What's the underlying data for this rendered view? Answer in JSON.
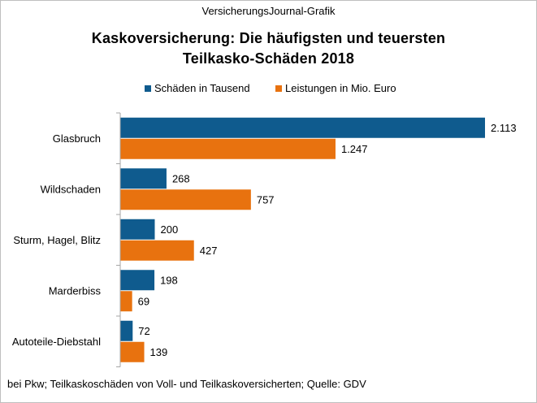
{
  "source_label": "VersicherungsJournal-Grafik",
  "title_line1": "Kaskoversicherung:  Die häufigsten  und  teuersten",
  "title_line2": "Teilkasko-Schäden  2018",
  "footnote": "bei Pkw; Teilkaskoschäden  von  Voll- und Teilkaskoversicherten;   Quelle: GDV",
  "colors": {
    "series1": "#0f5b8e",
    "series2": "#e8720f",
    "axis": "#a6a6a6",
    "border": "#bfbfbf"
  },
  "chart_data": {
    "type": "bar",
    "orientation": "horizontal",
    "title": "Kaskoversicherung:  Die häufigsten  und  teuersten Teilkasko-Schäden  2018",
    "categories": [
      "Glasbruch",
      "Wildschaden",
      "Sturm, Hagel, Blitz",
      "Marderbiss",
      "Autoteile-Diebstahl"
    ],
    "series": [
      {
        "name": "Schäden in Tausend",
        "values": [
          2113,
          268,
          200,
          198,
          72
        ],
        "labels": [
          "2.113",
          "268",
          "200",
          "198",
          "72"
        ],
        "color": "#0f5b8e"
      },
      {
        "name": "Leistungen in Mio. Euro",
        "values": [
          1247,
          757,
          427,
          69,
          139
        ],
        "labels": [
          "1.247",
          "757",
          "427",
          "69",
          "139"
        ],
        "color": "#e8720f"
      }
    ],
    "xlim": [
      0,
      2113
    ],
    "grid": false,
    "legend_position": "top",
    "xlabel": "",
    "ylabel": ""
  }
}
